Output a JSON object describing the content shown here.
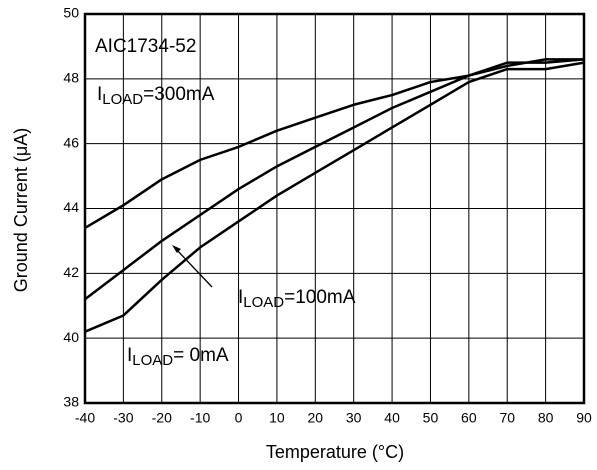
{
  "chart_data": {
    "type": "line",
    "xlabel": "Temperature (°C)",
    "ylabel": "Ground Current (μA)",
    "x": [
      -40,
      -30,
      -20,
      -10,
      0,
      10,
      20,
      30,
      40,
      50,
      60,
      70,
      80,
      90
    ],
    "series": [
      {
        "color": "#000000",
        "values": [
          43.4,
          44.1,
          44.9,
          45.5,
          45.9,
          46.4,
          46.8,
          47.2,
          47.5,
          47.9,
          48.1,
          48.4,
          48.6,
          48.6
        ]
      },
      {
        "color": "#000000",
        "values": [
          41.2,
          42.1,
          43.0,
          43.8,
          44.6,
          45.3,
          45.9,
          46.5,
          47.1,
          47.6,
          48.1,
          48.5,
          48.5,
          48.6
        ]
      },
      {
        "color": "#000000",
        "values": [
          40.2,
          40.7,
          41.8,
          42.8,
          43.6,
          44.4,
          45.1,
          45.8,
          46.5,
          47.2,
          47.9,
          48.3,
          48.3,
          48.5
        ]
      }
    ],
    "annotations": [
      {
        "text": "AIC1734-52"
      },
      {
        "main": "I",
        "sub": "LOAD",
        "rest": "=300mA"
      },
      {
        "main": "I",
        "sub": "LOAD",
        "rest": "=100mA"
      },
      {
        "main": "I",
        "sub": "LOAD",
        "rest": "= 0mA"
      }
    ],
    "xlim": [
      -40,
      90
    ],
    "xticks": [
      -40,
      -30,
      -20,
      -10,
      0,
      10,
      20,
      30,
      40,
      50,
      60,
      70,
      80,
      90
    ],
    "ylim": [
      38,
      50
    ],
    "yticks": [
      38,
      40,
      42,
      44,
      46,
      48,
      50
    ],
    "grid": true
  }
}
